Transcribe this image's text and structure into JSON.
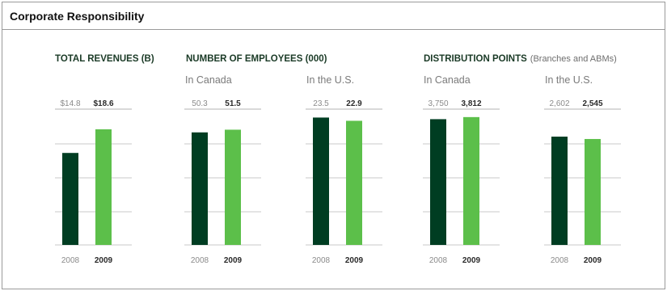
{
  "panel": {
    "title": "Corporate Responsibility"
  },
  "sections": [
    {
      "id": "revenues",
      "title": "TOTAL REVENUES (B)",
      "subtitle": ""
    },
    {
      "id": "employees",
      "title": "NUMBER OF EMPLOYEES (000)",
      "subtitle": ""
    },
    {
      "id": "distribution",
      "title": "DISTRIBUTION POINTS",
      "subtitle": "(Branches and ABMs)"
    }
  ],
  "colors": {
    "dark_green": "#003d22",
    "light_green": "#5cbf4a",
    "grid": "#c8c8c8",
    "value_rule": "#9a9a9a"
  },
  "chart_data": [
    {
      "type": "bar",
      "title": "TOTAL REVENUES (B)",
      "group_label": "",
      "categories": [
        "2008",
        "2009"
      ],
      "values": [
        14.8,
        18.6
      ],
      "value_labels": [
        "$14.8",
        "$18.6"
      ]
    },
    {
      "type": "bar",
      "title": "NUMBER OF EMPLOYEES (000)",
      "group_label": "In Canada",
      "categories": [
        "2008",
        "2009"
      ],
      "values": [
        50.3,
        51.5
      ],
      "value_labels": [
        "50.3",
        "51.5"
      ]
    },
    {
      "type": "bar",
      "title": "NUMBER OF EMPLOYEES (000)",
      "group_label": "In the U.S.",
      "categories": [
        "2008",
        "2009"
      ],
      "values": [
        23.5,
        22.9
      ],
      "value_labels": [
        "23.5",
        "22.9"
      ]
    },
    {
      "type": "bar",
      "title": "DISTRIBUTION POINTS",
      "group_label": "In Canada",
      "categories": [
        "2008",
        "2009"
      ],
      "values": [
        3750,
        3812
      ],
      "value_labels": [
        "3,750",
        "3,812"
      ]
    },
    {
      "type": "bar",
      "title": "DISTRIBUTION POINTS",
      "group_label": "In the U.S.",
      "categories": [
        "2008",
        "2009"
      ],
      "values": [
        2602,
        2545
      ],
      "value_labels": [
        "2,602",
        "2,545"
      ]
    }
  ]
}
